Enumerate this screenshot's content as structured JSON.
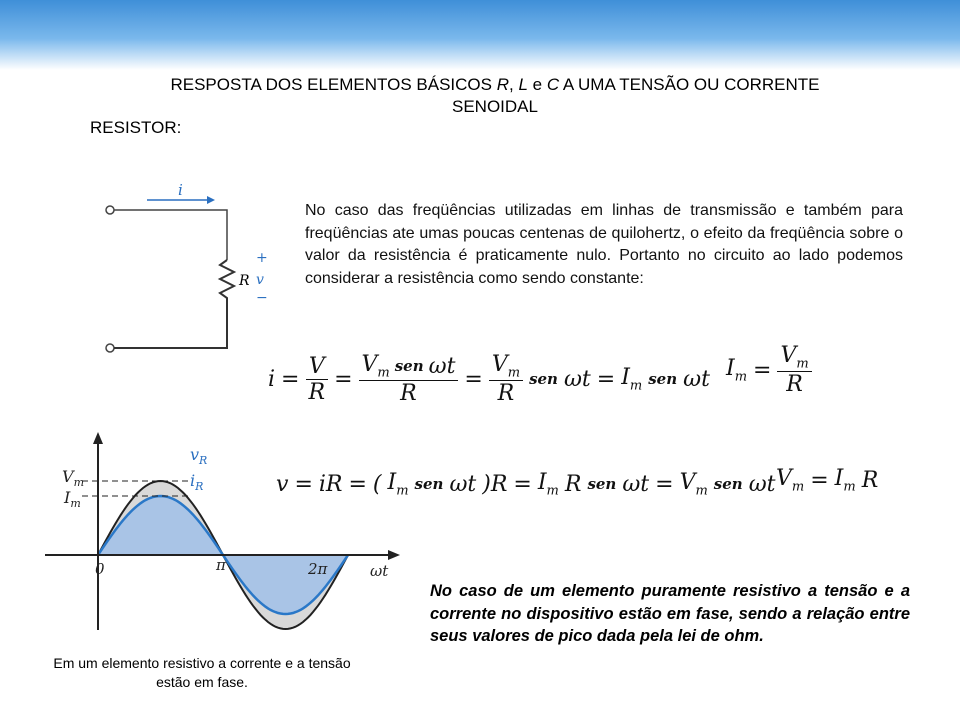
{
  "header": {
    "title_parts": [
      "RESPOSTA DOS ELEMENTOS BÁSICOS ",
      "R",
      ", ",
      "L",
      " e ",
      "C",
      " A UMA TENSÃO OU CORRENTE SENOIDAL"
    ],
    "section": "RESISTOR:"
  },
  "paragraph": "No caso das freqüências utilizadas em linhas de transmissão e também para freqüências ate umas poucas centenas de quilohertz, o efeito da freqüência sobre o valor da resistência é praticamente nulo. Portanto no circuito ao lado podemos considerar a resistência como sendo constante:",
  "circuit": {
    "current": "i",
    "resistor": "R",
    "plus": "+",
    "voltage": "v",
    "minus": "−"
  },
  "equations": {
    "eq1": [
      "i",
      "=",
      {
        "num": [
          "V"
        ],
        "den": [
          "R"
        ]
      },
      "=",
      {
        "num": [
          {
            "base": "V",
            "sub": "m"
          },
          "sen",
          "ωt"
        ],
        "den": [
          "R"
        ]
      },
      "=",
      {
        "num": [
          {
            "base": "V",
            "sub": "m"
          }
        ],
        "den": [
          "R"
        ]
      },
      "sen",
      "ωt",
      "=",
      {
        "base": "I",
        "sub": "m"
      },
      "sen",
      "ωt"
    ],
    "eq2": [
      {
        "base": "I",
        "sub": "m"
      },
      "=",
      {
        "num": [
          {
            "base": "V",
            "sub": "m"
          }
        ],
        "den": [
          "R"
        ]
      }
    ],
    "eq3": [
      "v",
      "=",
      "iR",
      "=",
      "(",
      {
        "base": "I",
        "sub": "m"
      },
      "sen",
      "ωt",
      ")R",
      "=",
      {
        "base": "I",
        "sub": "m"
      },
      "R",
      "sen",
      "ωt",
      "=",
      {
        "base": "V",
        "sub": "m"
      },
      "sen",
      "ωt"
    ],
    "eq4": [
      {
        "base": "V",
        "sub": "m"
      },
      "=",
      {
        "base": "I",
        "sub": "m"
      },
      "R"
    ]
  },
  "waveform": {
    "vm_label": {
      "base": "V",
      "sub": "m"
    },
    "im_label": {
      "base": "I",
      "sub": "m"
    },
    "v_label": {
      "base": "v",
      "sub": "R"
    },
    "i_label": {
      "base": "i",
      "sub": "R"
    },
    "origin": "0",
    "pi": "π",
    "two_pi": "2π",
    "axis": "ωt"
  },
  "caption": "Em um elemento resistivo a corrente e a tensão estão em fase.",
  "note": "No caso de um elemento puramente resistivo a tensão e a corrente no dispositivo estão em fase, sendo a relação entre seus valores de pico dada pela lei de ohm."
}
